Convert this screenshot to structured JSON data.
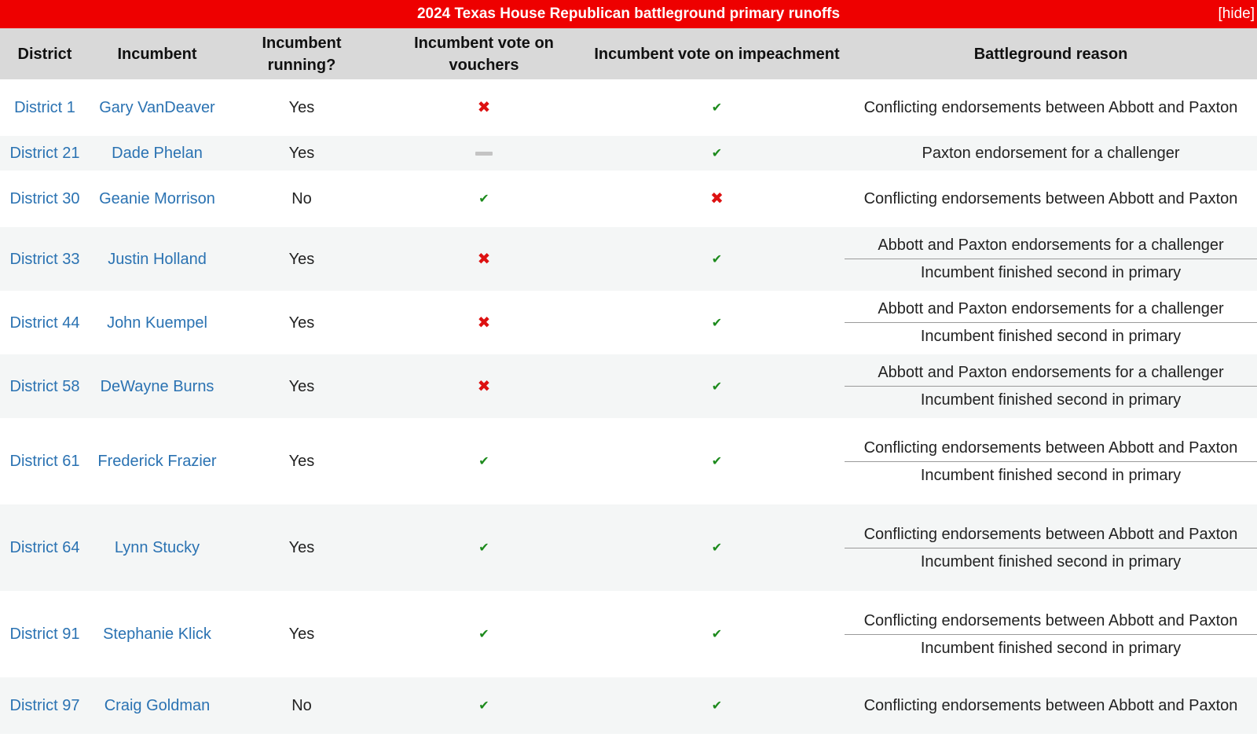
{
  "title": "2024 Texas House Republican battleground primary runoffs",
  "hide_label": "[hide]",
  "headers": {
    "district": "District",
    "incumbent": "Incumbent",
    "running": "Incumbent running?",
    "vouchers": "Incumbent vote on vouchers",
    "impeachment": "Incumbent vote on impeachment",
    "reason": "Battleground reason"
  },
  "vote_icons": {
    "no": "red-x-icon",
    "yes": "green-check-icon",
    "absent": "gray-dash-icon"
  },
  "colors": {
    "title_bar": "#ee0000",
    "header_bg": "#d9d9d9",
    "link": "#2a72b2",
    "yes_check": "#1c8a1c",
    "no_x": "#dd1111"
  },
  "rows": [
    {
      "district": "District 1",
      "incumbent": "Gary VanDeaver",
      "running": "Yes",
      "vouchers": "no",
      "impeachment": "yes",
      "reasons": [
        "Conflicting endorsements between Abbott and Paxton"
      ]
    },
    {
      "district": "District 21",
      "incumbent": "Dade Phelan",
      "running": "Yes",
      "vouchers": "absent",
      "impeachment": "yes",
      "reasons": [
        "Paxton endorsement for a challenger"
      ]
    },
    {
      "district": "District 30",
      "incumbent": "Geanie Morrison",
      "running": "No",
      "vouchers": "yes",
      "impeachment": "no",
      "reasons": [
        "Conflicting endorsements between Abbott and Paxton"
      ]
    },
    {
      "district": "District 33",
      "incumbent": "Justin Holland",
      "running": "Yes",
      "vouchers": "no",
      "impeachment": "yes",
      "reasons": [
        "Abbott and Paxton endorsements for a challenger",
        "Incumbent finished second in primary"
      ]
    },
    {
      "district": "District 44",
      "incumbent": "John Kuempel",
      "running": "Yes",
      "vouchers": "no",
      "impeachment": "yes",
      "reasons": [
        "Abbott and Paxton endorsements for a challenger",
        "Incumbent finished second in primary"
      ]
    },
    {
      "district": "District 58",
      "incumbent": "DeWayne Burns",
      "running": "Yes",
      "vouchers": "no",
      "impeachment": "yes",
      "reasons": [
        "Abbott and Paxton endorsements for a challenger",
        "Incumbent finished second in primary"
      ]
    },
    {
      "district": "District 61",
      "incumbent": "Frederick Frazier",
      "running": "Yes",
      "vouchers": "yes",
      "impeachment": "yes",
      "reasons": [
        "Conflicting endorsements between Abbott and Paxton",
        "Incumbent finished second in primary"
      ]
    },
    {
      "district": "District 64",
      "incumbent": "Lynn Stucky",
      "running": "Yes",
      "vouchers": "yes",
      "impeachment": "yes",
      "reasons": [
        "Conflicting endorsements between Abbott and Paxton",
        "Incumbent finished second in primary"
      ]
    },
    {
      "district": "District 91",
      "incumbent": "Stephanie Klick",
      "running": "Yes",
      "vouchers": "yes",
      "impeachment": "yes",
      "reasons": [
        "Conflicting endorsements between Abbott and Paxton",
        "Incumbent finished second in primary"
      ]
    },
    {
      "district": "District 97",
      "incumbent": "Craig Goldman",
      "running": "No",
      "vouchers": "yes",
      "impeachment": "yes",
      "reasons": [
        "Conflicting endorsements between Abbott and Paxton"
      ]
    }
  ]
}
